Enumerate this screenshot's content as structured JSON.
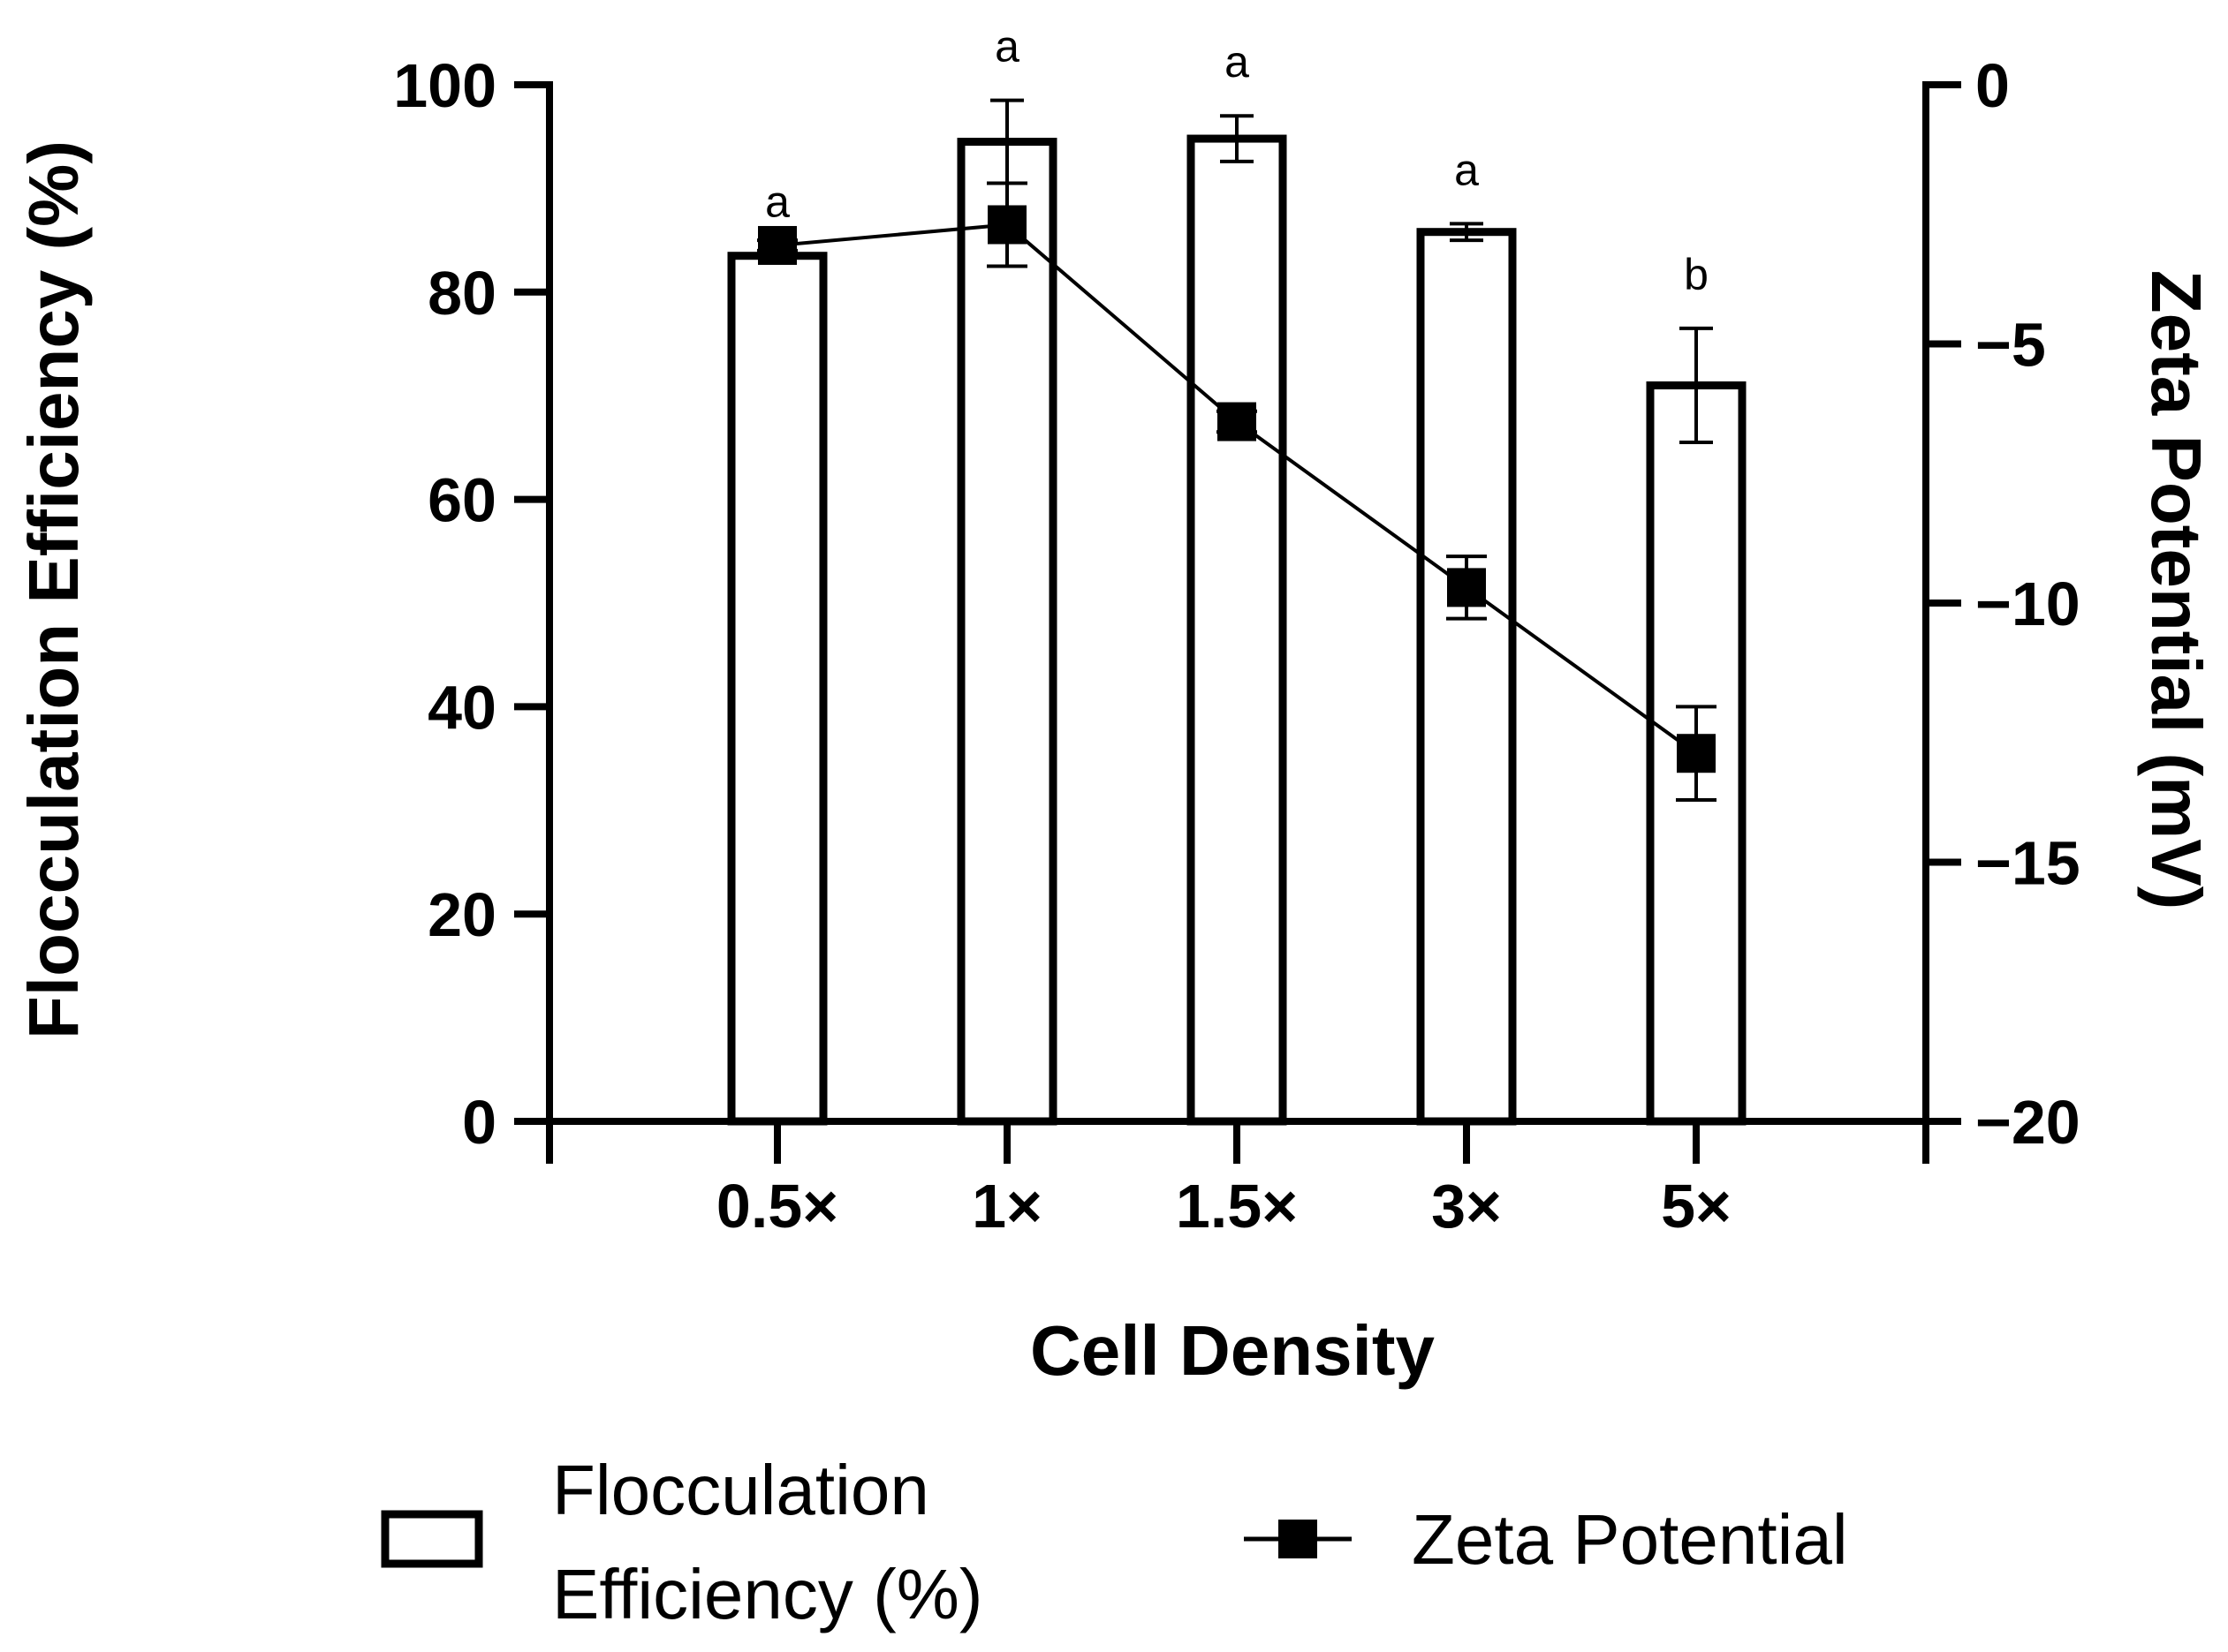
{
  "chart_data": {
    "type": "bar",
    "xlabel": "Cell Density",
    "ylabel": "Flocculation Efficiency (%)",
    "y2label": "Zeta Potential (mV)",
    "categories": [
      "0.5×",
      "1×",
      "1.5×",
      "3×",
      "5×"
    ],
    "ylim": [
      0,
      100
    ],
    "y2lim": [
      -20,
      0
    ],
    "yticks": [
      "0",
      "20",
      "40",
      "60",
      "80",
      "100"
    ],
    "y2ticks": [
      "0",
      "−5",
      "−10",
      "−15",
      "−20"
    ],
    "y_tick_values": [
      0,
      20,
      40,
      60,
      80,
      100
    ],
    "y2_tick_values": [
      0,
      -5,
      -10,
      -15,
      -20
    ],
    "grid": false,
    "legend_position": "bottom",
    "series": [
      {
        "name": "Flocculation Efficiency (%)",
        "legend_lines": [
          "Flocculation",
          "Efficiency (%)"
        ],
        "type": "bar",
        "axis": "left",
        "values": [
          83.5,
          94.5,
          94.8,
          85.8,
          71.0
        ],
        "errors": [
          0,
          4.0,
          2.2,
          0.8,
          5.5
        ],
        "significance": [
          "a",
          "a",
          "a",
          "a",
          "b"
        ]
      },
      {
        "name": "Zeta Potential",
        "type": "line",
        "marker": "square",
        "axis": "right",
        "values": [
          -3.1,
          -2.7,
          -6.5,
          -9.7,
          -12.9
        ],
        "errors": [
          0.1,
          0.8,
          0.2,
          0.6,
          0.9
        ]
      }
    ]
  }
}
